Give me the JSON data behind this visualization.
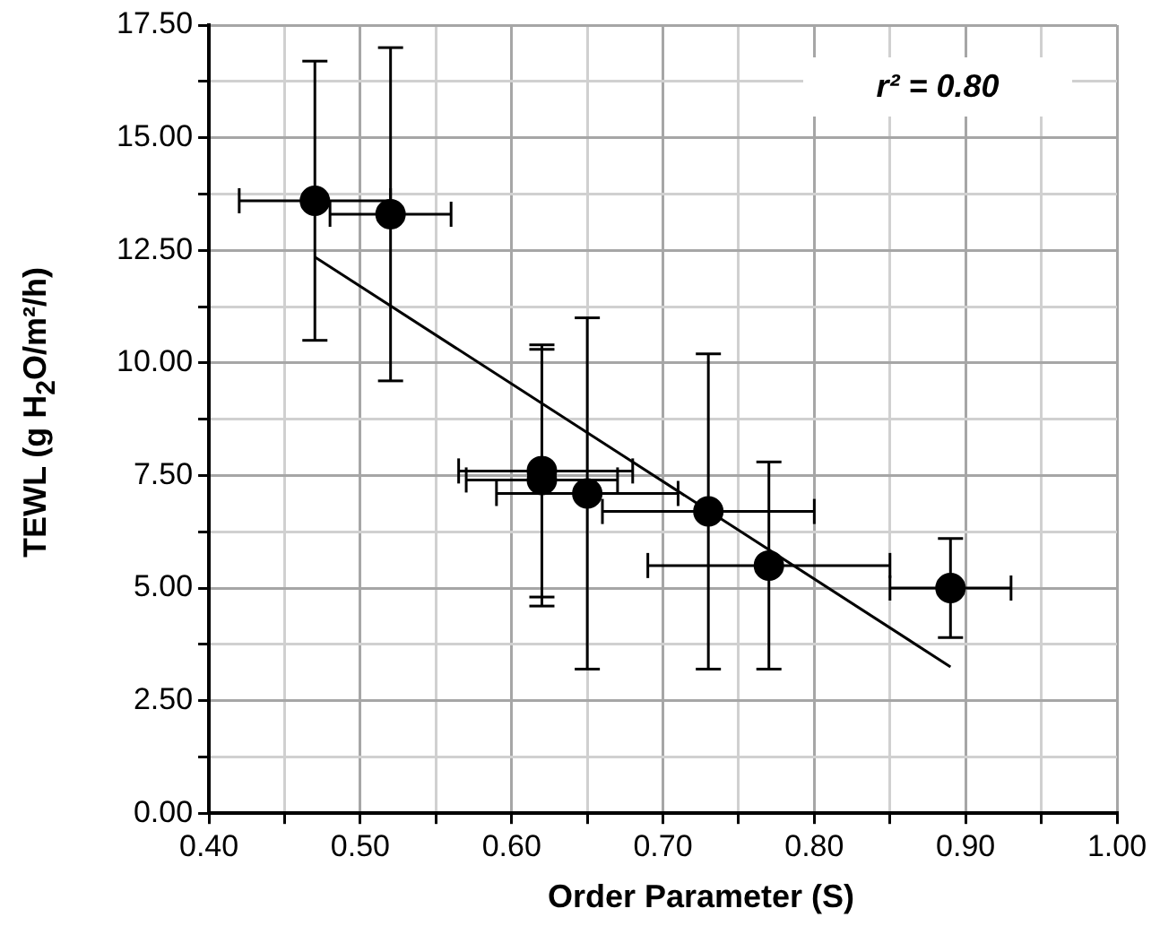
{
  "chart_data": {
    "type": "scatter",
    "xlabel": "Order Parameter (S)",
    "ylabel": "TEWL (g H$_{2}$O/m²/h)",
    "annotations": [
      "r² = 0.80"
    ],
    "xlim": [
      0.4,
      1.0
    ],
    "xticks": [
      {
        "value": 0.4,
        "label": "0.40"
      },
      {
        "value": 0.45,
        "label": null
      },
      {
        "value": 0.5,
        "label": "0.50"
      },
      {
        "value": 0.55,
        "label": null
      },
      {
        "value": 0.6,
        "label": "0.60"
      },
      {
        "value": 0.65,
        "label": null
      },
      {
        "value": 0.7,
        "label": "0.70"
      },
      {
        "value": 0.75,
        "label": null
      },
      {
        "value": 0.8,
        "label": "0.80"
      },
      {
        "value": 0.85,
        "label": null
      },
      {
        "value": 0.9,
        "label": "0.90"
      },
      {
        "value": 0.95,
        "label": null
      },
      {
        "value": 1.0,
        "label": "1.00"
      }
    ],
    "ylim": [
      0,
      17.5
    ],
    "yticks": [
      {
        "value": 0,
        "label": "0.00"
      },
      {
        "value": 1.25,
        "label": null
      },
      {
        "value": 2.5,
        "label": "2.50"
      },
      {
        "value": 3.75,
        "label": null
      },
      {
        "value": 5,
        "label": "5.00"
      },
      {
        "value": 6.25,
        "label": null
      },
      {
        "value": 7.5,
        "label": "7.50"
      },
      {
        "value": 8.75,
        "label": null
      },
      {
        "value": 10,
        "label": "10.00"
      },
      {
        "value": 11.25,
        "label": null
      },
      {
        "value": 12.5,
        "label": "12.50"
      },
      {
        "value": 13.75,
        "label": null
      },
      {
        "value": 15,
        "label": "15.00"
      },
      {
        "value": 16.25,
        "label": null
      },
      {
        "value": 17.5,
        "label": "17.50"
      }
    ],
    "grid": true,
    "legend": false,
    "marker": "circle",
    "series": [
      {
        "color": "#000000",
        "x": [
          0.47,
          0.52,
          0.62,
          0.62,
          0.65,
          0.73,
          0.77,
          0.89
        ],
        "values": [
          13.6,
          13.3,
          7.6,
          7.4,
          7.1,
          6.7,
          5.5,
          5.0
        ],
        "errors": [
          [
            10.5,
            16.7
          ],
          [
            9.6,
            17.0
          ],
          [
            4.8,
            10.4
          ],
          [
            4.6,
            10.3
          ],
          [
            3.2,
            11.0
          ],
          [
            3.2,
            10.2
          ],
          [
            3.2,
            7.8
          ],
          [
            3.9,
            6.1
          ]
        ],
        "xerrors": [
          [
            0.42,
            0.52
          ],
          [
            0.48,
            0.56
          ],
          [
            0.565,
            0.68
          ],
          [
            0.57,
            0.67
          ],
          [
            0.59,
            0.71
          ],
          [
            0.66,
            0.8
          ],
          [
            0.69,
            0.85
          ],
          [
            0.85,
            0.93
          ]
        ]
      },
      {
        "type": "line",
        "color": "#000000",
        "marker": "none",
        "x": [
          0.47,
          0.89
        ],
        "values": [
          12.35,
          3.25
        ]
      }
    ]
  }
}
